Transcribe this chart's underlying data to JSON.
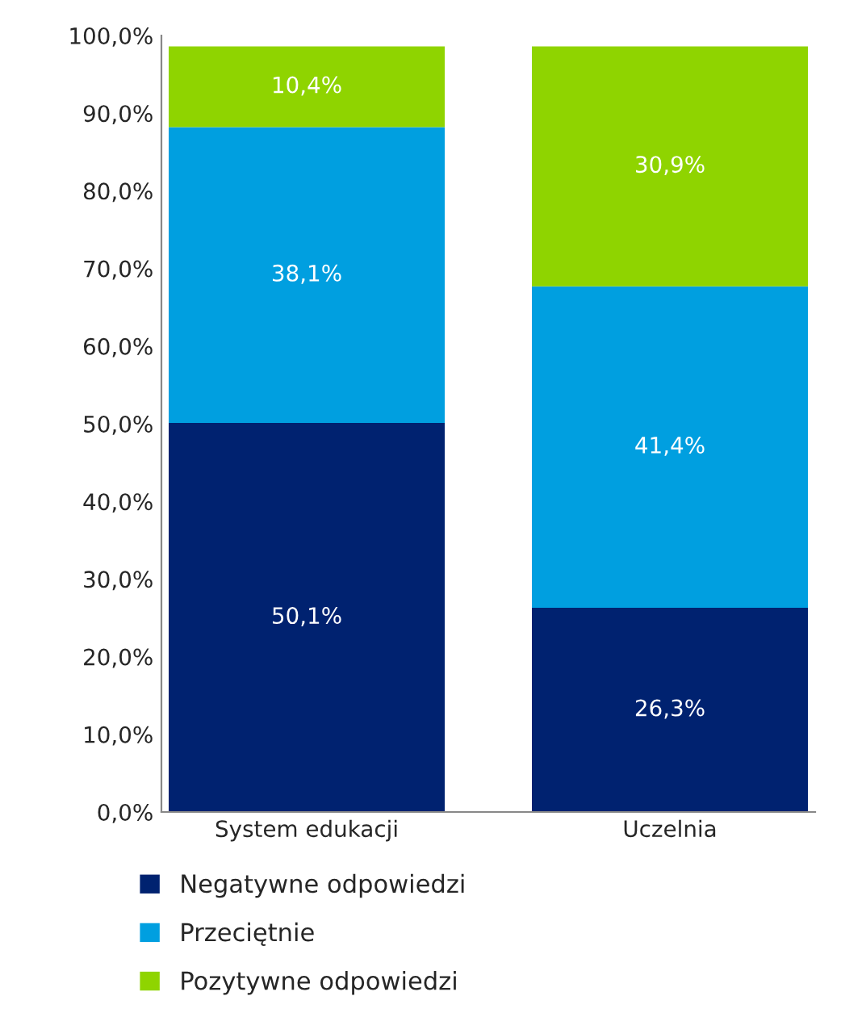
{
  "chart_data": {
    "type": "bar",
    "stacked": true,
    "categories": [
      "System edukacji",
      "Uczelnia"
    ],
    "series": [
      {
        "name": "Negatywne odpowiedzi",
        "color": "#002270",
        "values": [
          50.1,
          26.3
        ],
        "value_labels": [
          "50,1%",
          "26,3%"
        ]
      },
      {
        "name": "Przeciętnie",
        "color": "#009fe0",
        "values": [
          38.1,
          41.4
        ],
        "value_labels": [
          "38,1%",
          "41,4%"
        ]
      },
      {
        "name": "Pozytywne odpowiedzi",
        "color": "#8fd400",
        "values": [
          10.4,
          30.9
        ],
        "value_labels": [
          "10,4%",
          "30,9%"
        ]
      }
    ],
    "ylim": [
      0,
      100
    ],
    "yticks": [
      {
        "value": 0,
        "label": "0,0%"
      },
      {
        "value": 10,
        "label": "10,0%"
      },
      {
        "value": 20,
        "label": "20,0%"
      },
      {
        "value": 30,
        "label": "30,0%"
      },
      {
        "value": 40,
        "label": "40,0%"
      },
      {
        "value": 50,
        "label": "50,0%"
      },
      {
        "value": 60,
        "label": "60,0%"
      },
      {
        "value": 70,
        "label": "70,0%"
      },
      {
        "value": 80,
        "label": "80,0%"
      },
      {
        "value": 90,
        "label": "90,0%"
      },
      {
        "value": 100,
        "label": "100,0%"
      }
    ],
    "grid": false,
    "legend": "bottom left"
  }
}
